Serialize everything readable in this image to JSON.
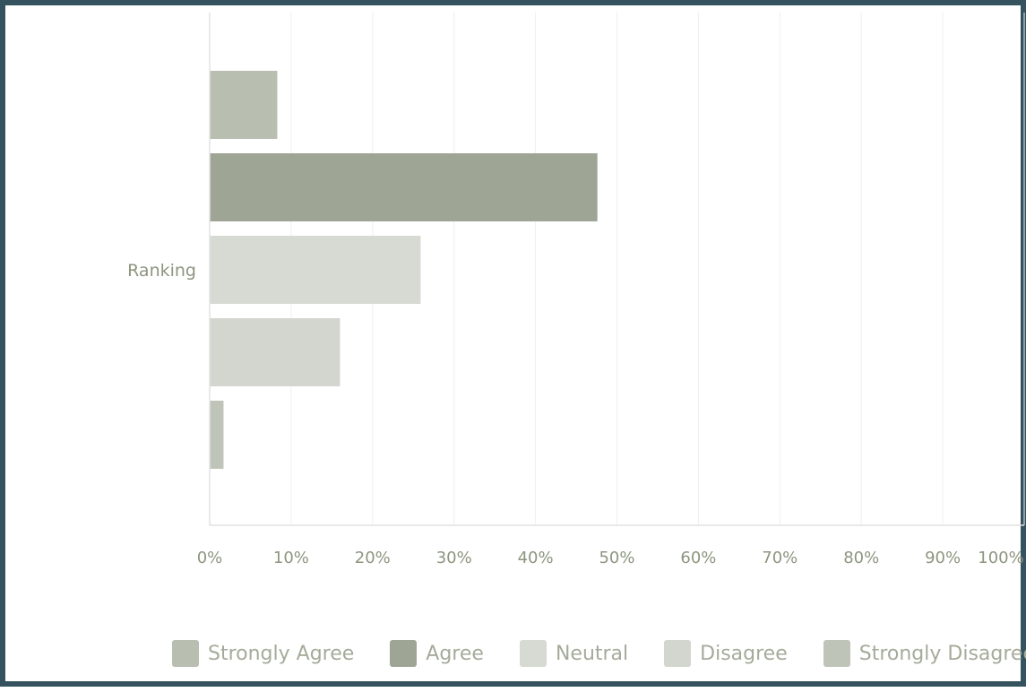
{
  "chart_data": {
    "type": "bar",
    "orientation": "horizontal",
    "categories": [
      "Ranking"
    ],
    "series": [
      {
        "name": "Strongly Agree",
        "color": "#b8beb0",
        "values": [
          8.3
        ]
      },
      {
        "name": "Agree",
        "color": "#9ea594",
        "values": [
          47.6
        ]
      },
      {
        "name": "Neutral",
        "color": "#d7dad3",
        "values": [
          25.9
        ]
      },
      {
        "name": "Disagree",
        "color": "#d3d6cf",
        "values": [
          16.0
        ]
      },
      {
        "name": "Strongly Disagree",
        "color": "#bfc4b8",
        "values": [
          1.7
        ]
      }
    ],
    "xlim": [
      0,
      100
    ],
    "x_ticks": [
      "0%",
      "10%",
      "20%",
      "30%",
      "40%",
      "50%",
      "60%",
      "70%",
      "80%",
      "90%",
      "100%"
    ],
    "grid": true,
    "legend_position": "bottom"
  }
}
